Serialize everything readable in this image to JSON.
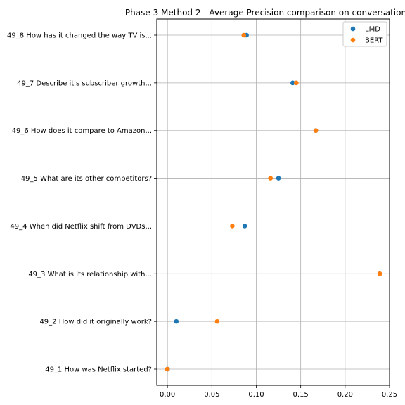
{
  "chart_data": {
    "type": "scatter",
    "title": "Phase 3 Method 2 - Average Precision comparison on conversation",
    "xlabel": "",
    "ylabel": "",
    "xlim": [
      -0.012,
      0.25
    ],
    "xticks": [
      0.0,
      0.05,
      0.1,
      0.15,
      0.2,
      0.25
    ],
    "xtick_labels": [
      "0.00",
      "0.05",
      "0.10",
      "0.15",
      "0.20",
      "0.25"
    ],
    "grid": true,
    "legend_position": "top-right",
    "categories": [
      "49_1 How was Netflix started?",
      "49_2 How did it originally work?",
      "49_3 What is its relationship with...",
      "49_4 When did Netflix shift from DVDs...",
      "49_5 What are its other competitors?",
      "49_6 How does it compare to Amazon...",
      "49_7 Describe it's subscriber growth...",
      "49_8 How has it changed the way TV is..."
    ],
    "series": [
      {
        "name": "LMD",
        "color": "#1f77b4",
        "values": [
          0.0,
          0.01,
          0.239,
          0.087,
          0.125,
          0.167,
          0.141,
          0.089
        ]
      },
      {
        "name": "BERT",
        "color": "#ff7f0e",
        "values": [
          0.0,
          0.056,
          0.239,
          0.073,
          0.116,
          0.167,
          0.145,
          0.086
        ]
      }
    ]
  }
}
